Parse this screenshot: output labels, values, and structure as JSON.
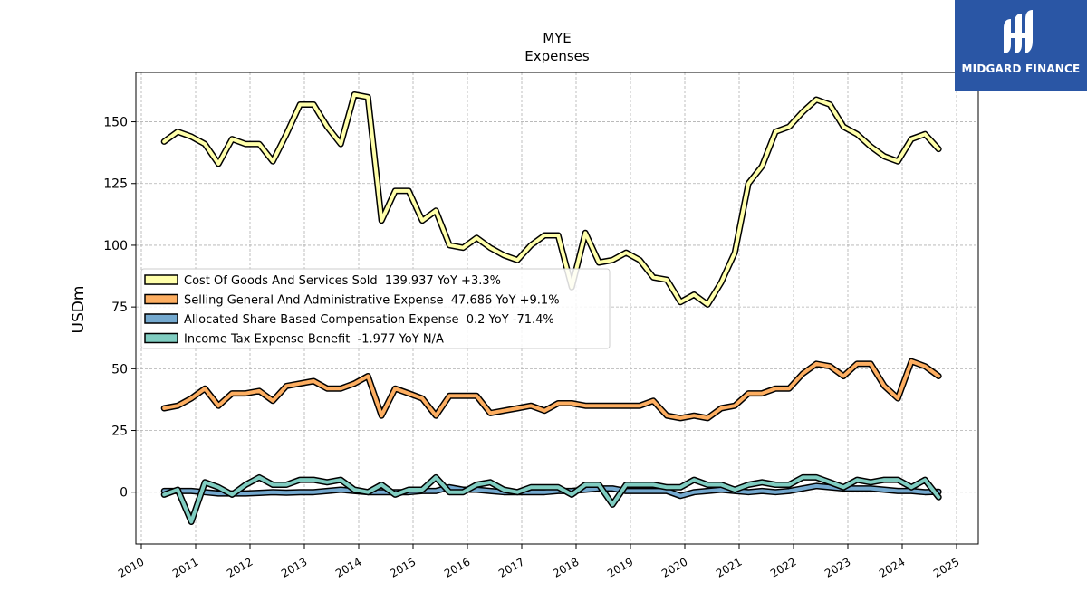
{
  "chart_data": {
    "type": "line",
    "title": "MYE",
    "subtitle": "Expenses",
    "xlabel": "",
    "ylabel": "USDm",
    "ylim": [
      -21,
      170
    ],
    "xlim": [
      2009.9,
      2025.4
    ],
    "x_ticks": [
      "2010",
      "2011",
      "2012",
      "2013",
      "2014",
      "2015",
      "2016",
      "2017",
      "2018",
      "2019",
      "2020",
      "2021",
      "2022",
      "2023",
      "2024",
      "2025"
    ],
    "y_ticks": [
      0,
      25,
      50,
      75,
      100,
      125,
      150
    ],
    "grid": true,
    "legend_position": "center-left",
    "x": [
      2010.42,
      2010.67,
      2010.92,
      2011.17,
      2011.42,
      2011.67,
      2011.92,
      2012.17,
      2012.42,
      2012.67,
      2012.92,
      2013.17,
      2013.42,
      2013.67,
      2013.92,
      2014.17,
      2014.42,
      2014.67,
      2014.92,
      2015.17,
      2015.42,
      2015.67,
      2015.92,
      2016.17,
      2016.42,
      2016.67,
      2016.92,
      2017.17,
      2017.42,
      2017.67,
      2017.92,
      2018.17,
      2018.42,
      2018.67,
      2018.92,
      2019.17,
      2019.42,
      2019.67,
      2019.92,
      2020.17,
      2020.42,
      2020.67,
      2020.92,
      2021.17,
      2021.42,
      2021.67,
      2021.92,
      2022.17,
      2022.42,
      2022.67,
      2022.92,
      2023.17,
      2023.42,
      2023.67,
      2023.92,
      2024.17,
      2024.42,
      2024.67
    ],
    "series": [
      {
        "name": "Cost Of Goods And Services Sold  139.937 YoY +3.3%",
        "color": "#ffffaa",
        "values": [
          142,
          146,
          144,
          141,
          133,
          143,
          141,
          141,
          134,
          145,
          157,
          157,
          148,
          141,
          161,
          160,
          110,
          122,
          122,
          110,
          114,
          100,
          99,
          103,
          99,
          96,
          94,
          100,
          104,
          104,
          83,
          105,
          93,
          94,
          97,
          94,
          87,
          86,
          77,
          80,
          76,
          85,
          97,
          125,
          132,
          146,
          148,
          154,
          159,
          157,
          148,
          145,
          140,
          136,
          134,
          143,
          145,
          139
        ]
      },
      {
        "name": "Selling General And Administrative Expense  47.686 YoY +9.1%",
        "color": "#fdae61",
        "values": [
          34,
          35,
          38,
          42,
          35,
          40,
          40,
          41,
          37,
          43,
          44,
          45,
          42,
          42,
          44,
          47,
          31,
          42,
          40,
          38,
          31,
          39,
          39,
          39,
          32,
          33,
          34,
          35,
          33,
          36,
          36,
          35,
          35,
          35,
          35,
          35,
          37,
          31,
          30,
          31,
          30,
          34,
          35,
          40,
          40,
          42,
          42,
          48,
          52,
          51,
          47,
          52,
          52,
          43,
          38,
          53,
          51,
          47
        ]
      },
      {
        "name": "Allocated Share Based Compensation Expense  0.2 YoY -71.4%",
        "color": "#74a9cf",
        "values": [
          0.5,
          0.5,
          0.5,
          0,
          -0.5,
          -0.5,
          -0.5,
          -0.3,
          0,
          -0.2,
          0,
          0,
          0.5,
          1,
          0.5,
          0,
          0,
          0,
          0,
          0.5,
          0.5,
          2,
          1,
          1,
          0.5,
          0,
          0,
          0,
          0,
          0.5,
          0.5,
          1,
          1.5,
          1.5,
          0.5,
          0.5,
          0.5,
          0.5,
          -1.5,
          0,
          0.5,
          1,
          0.5,
          0,
          0.5,
          0,
          0.5,
          1.5,
          2.5,
          2,
          1.5,
          1.5,
          1.5,
          1,
          0.5,
          0.5,
          0,
          0.2
        ]
      },
      {
        "name": "Income Tax Expense Benefit  -1.977 YoY N/A",
        "color": "#80cdc1",
        "values": [
          -1,
          1,
          -12,
          4,
          2,
          -1,
          3,
          6,
          3,
          3,
          5,
          5,
          4,
          5,
          1,
          0,
          3,
          -1,
          1,
          1,
          6,
          0,
          0,
          3,
          4,
          1,
          0,
          2,
          2,
          2,
          -1,
          3,
          3,
          -5,
          3,
          3,
          3,
          2,
          2,
          5,
          3,
          3,
          1,
          3,
          4,
          3,
          3,
          6,
          6,
          4,
          2,
          5,
          4,
          5,
          5,
          2,
          5,
          -2
        ]
      }
    ]
  },
  "logo": {
    "text": "MIDGARD FINANCE",
    "color": "#2a56a5"
  }
}
